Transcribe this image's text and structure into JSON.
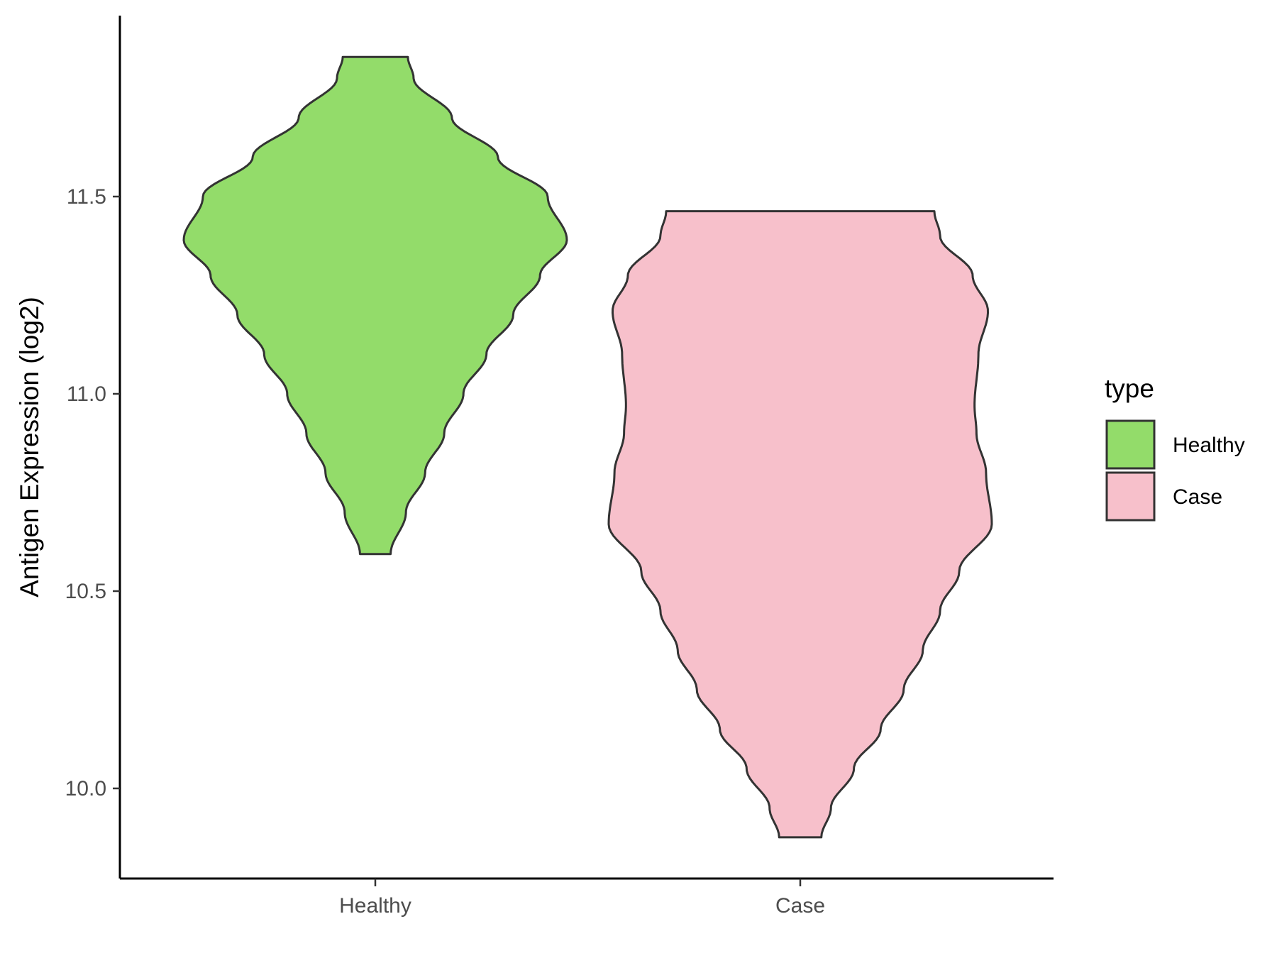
{
  "chart_data": {
    "type": "violin",
    "title": "",
    "xlabel": "",
    "ylabel": "Antigen Expression (log2)",
    "ylim": [
      9.78,
      11.98
    ],
    "yticks": [
      10.0,
      10.5,
      11.0,
      11.5
    ],
    "ytick_labels": [
      "10.0",
      "10.5",
      "11.0",
      "11.5"
    ],
    "categories": [
      "Healthy",
      "Case"
    ],
    "grid": false,
    "legend": {
      "title": "type",
      "position": "right",
      "entries": [
        {
          "label": "Healthy",
          "color": "#93dc6a"
        },
        {
          "label": "Case",
          "color": "#f7c0cb"
        }
      ]
    },
    "outline_color": "#333333",
    "series": [
      {
        "name": "Healthy",
        "color": "#93dc6a",
        "min": 10.594,
        "max": 11.854,
        "density_profile": [
          [
            10.594,
            0.08
          ],
          [
            10.7,
            0.16
          ],
          [
            10.8,
            0.26
          ],
          [
            10.9,
            0.36
          ],
          [
            11.0,
            0.46
          ],
          [
            11.1,
            0.58
          ],
          [
            11.2,
            0.72
          ],
          [
            11.3,
            0.86
          ],
          [
            11.39,
            1.0
          ],
          [
            11.5,
            0.9
          ],
          [
            11.6,
            0.64
          ],
          [
            11.7,
            0.4
          ],
          [
            11.8,
            0.2
          ],
          [
            11.854,
            0.17
          ]
        ]
      },
      {
        "name": "Case",
        "color": "#f7c0cb",
        "min": 9.876,
        "max": 11.463,
        "density_profile": [
          [
            9.876,
            0.11
          ],
          [
            9.95,
            0.16
          ],
          [
            10.05,
            0.28
          ],
          [
            10.15,
            0.42
          ],
          [
            10.25,
            0.54
          ],
          [
            10.35,
            0.64
          ],
          [
            10.45,
            0.73
          ],
          [
            10.55,
            0.83
          ],
          [
            10.67,
            1.0
          ],
          [
            10.8,
            0.97
          ],
          [
            10.9,
            0.92
          ],
          [
            10.97,
            0.91
          ],
          [
            11.1,
            0.93
          ],
          [
            11.21,
            0.98
          ],
          [
            11.3,
            0.9
          ],
          [
            11.4,
            0.73
          ],
          [
            11.463,
            0.7
          ]
        ]
      }
    ]
  }
}
